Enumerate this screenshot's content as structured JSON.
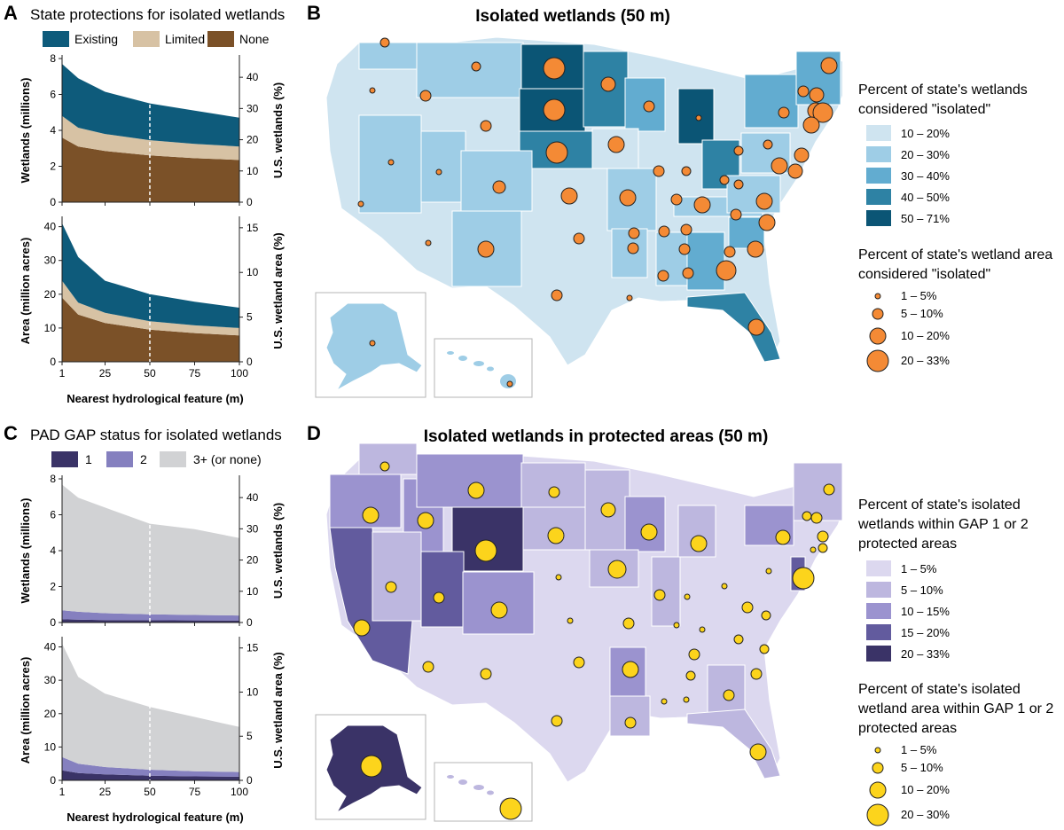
{
  "colors": {
    "existing": "#0e5b7b",
    "limited": "#d7c2a4",
    "none": "#7b5128",
    "gap1": "#3a3367",
    "gap2": "#8580bf",
    "gap3": "#d1d2d4",
    "blue_bins": [
      "#cfe4f0",
      "#9ecde6",
      "#62acd0",
      "#2e82a4",
      "#0b5575"
    ],
    "purple_bins": [
      "#dcd8ef",
      "#bdb7df",
      "#9b93cf",
      "#625b9e",
      "#3a3367"
    ],
    "circle_orange": "#f48a35",
    "circle_yellow": "#fcd41c"
  },
  "panel_a": {
    "label": "A",
    "title": "State protections for isolated wetlands",
    "legend": [
      "Existing",
      "Limited",
      "None"
    ]
  },
  "panel_b": {
    "label": "B",
    "title": "Isolated wetlands (50 m)",
    "legend1_title": [
      "Percent of state's wetlands",
      "considered \"isolated\""
    ],
    "legend1_items": [
      "10 – 20%",
      "20 – 30%",
      "30 – 40%",
      "40 – 50%",
      "50 – 71%"
    ],
    "legend2_title": [
      "Percent of state's wetland area",
      "considered \"isolated\""
    ],
    "legend2_items": [
      "1 – 5%",
      "5 – 10%",
      "10 – 20%",
      "20 – 33%"
    ]
  },
  "panel_c": {
    "label": "C",
    "title": "PAD GAP status for isolated wetlands",
    "legend": [
      "1",
      "2",
      "3+ (or none)"
    ]
  },
  "panel_d": {
    "label": "D",
    "title": "Isolated wetlands in protected areas (50 m)",
    "legend1_title": [
      "Percent of state's isolated",
      "wetlands within GAP 1 or 2",
      "protected areas"
    ],
    "legend1_items": [
      "1 – 5%",
      "5 – 10%",
      "10 – 15%",
      "15 – 20%",
      "20 – 33%"
    ],
    "legend2_title": [
      "Percent of state's isolated",
      "wetland area within GAP 1 or 2",
      "protected areas"
    ],
    "legend2_items": [
      "1 – 5%",
      "5 – 10%",
      "10 – 20%",
      "20 – 30%"
    ]
  },
  "chart_data": [
    {
      "type": "area",
      "title": "State protections for isolated wetlands",
      "ylabel": "Wetlands (millions)",
      "ylabel_right": "U.S. wetlands (%)",
      "ylim": [
        0,
        8
      ],
      "yticks": [
        0,
        2,
        4,
        6,
        8
      ],
      "right_ticks": [
        0,
        10,
        20,
        30,
        40
      ],
      "right_max_value": 8,
      "right_max_pct": 46,
      "x": [
        1,
        10,
        25,
        50,
        75,
        100
      ],
      "xticks": [
        1,
        25,
        50,
        75,
        100
      ],
      "marker_x": 50,
      "stacked": true,
      "series": [
        {
          "name": "None",
          "values": [
            3.6,
            3.1,
            2.85,
            2.6,
            2.45,
            2.35
          ]
        },
        {
          "name": "Limited",
          "values": [
            1.2,
            1.05,
            0.95,
            0.85,
            0.8,
            0.75
          ]
        },
        {
          "name": "Existing",
          "values": [
            2.9,
            2.75,
            2.35,
            2.05,
            1.85,
            1.6
          ]
        }
      ]
    },
    {
      "type": "area",
      "ylabel": "Area (million acres)",
      "ylabel_right": "U.S. wetland area (%)",
      "xlabel": "Nearest hydrological feature (m)",
      "ylim": [
        0,
        42
      ],
      "yticks": [
        0,
        10,
        20,
        30,
        40
      ],
      "right_ticks": [
        0,
        5,
        10,
        15
      ],
      "right_max_value": 41,
      "right_max_pct": 15.5,
      "x": [
        1,
        10,
        25,
        50,
        75,
        100
      ],
      "xticks": [
        1,
        25,
        50,
        75,
        100
      ],
      "marker_x": 50,
      "stacked": true,
      "series": [
        {
          "name": "None",
          "values": [
            19,
            14,
            11.5,
            9.5,
            8.5,
            7.8
          ]
        },
        {
          "name": "Limited",
          "values": [
            5,
            3.5,
            3,
            2.5,
            2.3,
            2.2
          ]
        },
        {
          "name": "Existing",
          "values": [
            17,
            13.5,
            9.5,
            8,
            7,
            6
          ]
        }
      ]
    },
    {
      "type": "area",
      "title": "PAD GAP status for isolated wetlands",
      "ylabel": "Wetlands (millions)",
      "ylabel_right": "U.S. wetlands (%)",
      "ylim": [
        0,
        8
      ],
      "yticks": [
        0,
        2,
        4,
        6,
        8
      ],
      "right_ticks": [
        0,
        10,
        20,
        30,
        40
      ],
      "right_max_value": 8,
      "right_max_pct": 46,
      "x": [
        1,
        10,
        25,
        50,
        75,
        100
      ],
      "xticks": [
        1,
        25,
        50,
        75,
        100
      ],
      "marker_x": 50,
      "stacked": true,
      "series": [
        {
          "name": "1",
          "values": [
            0.18,
            0.16,
            0.14,
            0.13,
            0.12,
            0.11
          ]
        },
        {
          "name": "2",
          "values": [
            0.5,
            0.44,
            0.38,
            0.33,
            0.3,
            0.28
          ]
        },
        {
          "name": "3+ (or none)",
          "values": [
            7.0,
            6.35,
            5.88,
            5.04,
            4.78,
            4.31
          ]
        }
      ]
    },
    {
      "type": "area",
      "ylabel": "Area (million acres)",
      "ylabel_right": "U.S. wetland area (%)",
      "xlabel": "Nearest hydrological feature (m)",
      "ylim": [
        0,
        42
      ],
      "yticks": [
        0,
        10,
        20,
        30,
        40
      ],
      "right_ticks": [
        0,
        5,
        10,
        15
      ],
      "right_max_value": 41,
      "right_max_pct": 15.5,
      "x": [
        1,
        10,
        25,
        50,
        75,
        100
      ],
      "xticks": [
        1,
        25,
        50,
        75,
        100
      ],
      "marker_x": 50,
      "stacked": true,
      "series": [
        {
          "name": "1",
          "values": [
            3,
            2.2,
            1.8,
            1.4,
            1.2,
            1.1
          ]
        },
        {
          "name": "2",
          "values": [
            4,
            2.8,
            2.2,
            1.8,
            1.5,
            1.4
          ]
        },
        {
          "name": "3+ (or none)",
          "values": [
            34,
            26,
            22,
            18.8,
            16.3,
            13.5
          ]
        }
      ]
    }
  ]
}
